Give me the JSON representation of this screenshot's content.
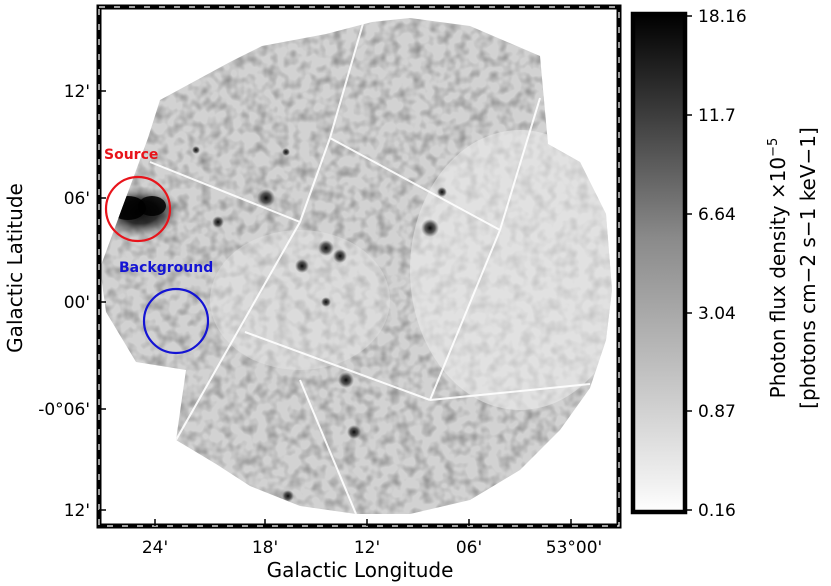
{
  "axes": {
    "xlabel": "Galactic Longitude",
    "ylabel": "Galactic Latitude",
    "xticks": [
      "24'",
      "18'",
      "12'",
      "06'",
      "53°00'"
    ],
    "yticks": [
      "12'",
      "06'",
      "00'",
      "-0°06'",
      "12'"
    ]
  },
  "colorbar": {
    "label_line1": "Photon flux density ×10",
    "label_exp": "−5",
    "label_line2": "[photons cm−2 s−1 keV−1]",
    "ticks": [
      "18.16",
      "11.7",
      "6.64",
      "3.04",
      "0.87",
      "0.16"
    ],
    "colormap": "grayscale (white = low, black = high)"
  },
  "annotations": {
    "source": {
      "label": "Source",
      "color": "#e8141b"
    },
    "background": {
      "label": "Background",
      "color": "#1414d4"
    }
  },
  "style": {
    "frame_color": "#000000"
  }
}
